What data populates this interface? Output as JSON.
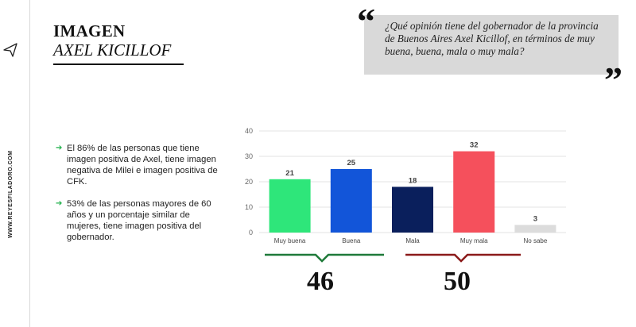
{
  "sidebar": {
    "site_url": "WWW.REYESFILADORO.COM"
  },
  "header": {
    "title": "IMAGEN",
    "subtitle": "AXEL KICILLOF"
  },
  "question": {
    "open_quote": "“",
    "close_quote": "”",
    "text": "¿Qué opinión tiene del gobernador de la provincia de Buenos Aires Axel Kicillof, en términos de muy buena, buena, mala o muy mala?"
  },
  "bullets": [
    "El 86% de las personas que tiene imagen positiva de Axel, tiene imagen negativa de Milei e imagen positiva de CFK.",
    "53% de las personas mayores de 60 años y un porcentaje similar de mujeres, tiene imagen positiva del gobernador."
  ],
  "chart_data": {
    "type": "bar",
    "categories": [
      "Muy buena",
      "Buena",
      "Mala",
      "Muy mala",
      "No sabe"
    ],
    "values": [
      21,
      25,
      18,
      32,
      3
    ],
    "colors": [
      "#2ee67a",
      "#1255d9",
      "#0a1f5c",
      "#f5505c",
      "#dcdcdc"
    ],
    "yticks": [
      0,
      10,
      20,
      30,
      40
    ],
    "ylim": [
      0,
      40
    ],
    "grid": true
  },
  "totals": {
    "positive": {
      "value": "46",
      "color": "#1f7a3a"
    },
    "negative": {
      "value": "50",
      "color": "#8b1a1a"
    }
  },
  "icons": {
    "nav": "send-arrow-icon"
  }
}
